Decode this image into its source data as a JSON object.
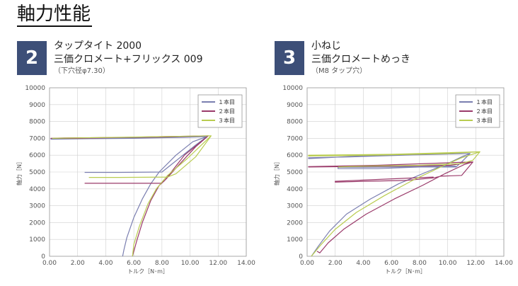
{
  "page_title": "軸力性能",
  "colors": {
    "run1": "#7a7eb0",
    "run2": "#9a3a6a",
    "run3": "#b9cc50",
    "badge": "#3d4f78"
  },
  "panels": [
    {
      "number": "2",
      "line1": "タップタイト 2000",
      "line2": "三価クロメート+フリックス 009",
      "sub": "（下穴径φ7.30）"
    },
    {
      "number": "3",
      "line1": "小ねじ",
      "line2": "三価クロメートめっき",
      "sub": "（M8 タップ穴）"
    }
  ],
  "chart_data": [
    {
      "type": "line",
      "xlabel": "トルク［N･m］",
      "ylabel": "軸力［N］",
      "xlim": [
        0,
        14
      ],
      "ylim": [
        0,
        10000
      ],
      "xticks": [
        "0.00",
        "2.00",
        "4.00",
        "6.00",
        "8.00",
        "10.00",
        "12.00",
        "14.00"
      ],
      "yticks": [
        "0",
        "1000",
        "2000",
        "3000",
        "4000",
        "5000",
        "6000",
        "7000",
        "8000",
        "9000",
        "10000"
      ],
      "legend_position": "top-right",
      "series": [
        {
          "name": "１本目",
          "points": [
            [
              5.2,
              0
            ],
            [
              5.3,
              400
            ],
            [
              5.5,
              1100
            ],
            [
              6.0,
              2300
            ],
            [
              6.6,
              3400
            ],
            [
              7.2,
              4300
            ],
            [
              7.8,
              5000
            ],
            [
              9.0,
              6000
            ],
            [
              10.2,
              6800
            ],
            [
              11.2,
              7100
            ],
            [
              9.0,
              7050
            ],
            [
              6.0,
              7000
            ],
            [
              3.0,
              6980
            ],
            [
              0.1,
              6950
            ],
            [
              0.1,
              6980
            ],
            [
              3.0,
              7000
            ],
            [
              6.0,
              7020
            ],
            [
              8.0,
              7050
            ],
            [
              11.2,
              7100
            ],
            [
              10.4,
              6600
            ],
            [
              8.6,
              5400
            ],
            [
              8.0,
              5000
            ],
            [
              5.0,
              4980
            ],
            [
              2.5,
              4980
            ]
          ]
        },
        {
          "name": "２本目",
          "points": [
            [
              5.9,
              0
            ],
            [
              6.2,
              900
            ],
            [
              6.6,
              2000
            ],
            [
              7.2,
              3300
            ],
            [
              7.8,
              4200
            ],
            [
              8.2,
              4500
            ],
            [
              9.4,
              5600
            ],
            [
              10.4,
              6500
            ],
            [
              11.3,
              7150
            ],
            [
              8.0,
              7100
            ],
            [
              5.0,
              7050
            ],
            [
              2.0,
              7000
            ],
            [
              0.1,
              7000
            ],
            [
              1.0,
              7020
            ],
            [
              4.0,
              7040
            ],
            [
              8.0,
              7080
            ],
            [
              11.3,
              7150
            ],
            [
              9.6,
              6000
            ],
            [
              8.2,
              4500
            ],
            [
              7.9,
              4330
            ],
            [
              5.0,
              4330
            ],
            [
              2.5,
              4330
            ]
          ]
        },
        {
          "name": "３本目",
          "points": [
            [
              5.9,
              0
            ],
            [
              6.0,
              700
            ],
            [
              6.4,
              1800
            ],
            [
              7.0,
              3100
            ],
            [
              7.6,
              4000
            ],
            [
              8.4,
              4800
            ],
            [
              9.8,
              5800
            ],
            [
              10.8,
              6600
            ],
            [
              11.5,
              7150
            ],
            [
              8.0,
              7100
            ],
            [
              4.0,
              7050
            ],
            [
              0.2,
              7000
            ],
            [
              2.0,
              7030
            ],
            [
              6.0,
              7070
            ],
            [
              11.5,
              7150
            ],
            [
              10.4,
              5900
            ],
            [
              9.0,
              4900
            ],
            [
              8.4,
              4700
            ],
            [
              5.0,
              4680
            ],
            [
              2.8,
              4680
            ]
          ]
        }
      ]
    },
    {
      "type": "line",
      "xlabel": "トルク［N･m］",
      "ylabel": "軸力［N］",
      "xlim": [
        0,
        14
      ],
      "ylim": [
        0,
        10000
      ],
      "xticks": [
        "0.00",
        "2.00",
        "4.00",
        "6.00",
        "8.00",
        "10.00",
        "12.00",
        "14.00"
      ],
      "yticks": [
        "0",
        "1000",
        "2000",
        "3000",
        "4000",
        "5000",
        "6000",
        "7000",
        "8000",
        "9000",
        "10000"
      ],
      "legend_position": "top-right",
      "series": [
        {
          "name": "１本目",
          "points": [
            [
              0.3,
              0
            ],
            [
              0.8,
              600
            ],
            [
              1.6,
              1500
            ],
            [
              2.8,
              2500
            ],
            [
              4.5,
              3400
            ],
            [
              6.5,
              4300
            ],
            [
              8.5,
              5000
            ],
            [
              10.0,
              5500
            ],
            [
              11.0,
              5900
            ],
            [
              11.6,
              6100
            ],
            [
              9.0,
              6050
            ],
            [
              5.0,
              6000
            ],
            [
              0.1,
              5800
            ],
            [
              0.1,
              5850
            ],
            [
              3.0,
              5900
            ],
            [
              7.0,
              6000
            ],
            [
              11.6,
              6100
            ],
            [
              11.0,
              5600
            ],
            [
              10.6,
              5300
            ],
            [
              8.0,
              5300
            ],
            [
              5.0,
              5200
            ],
            [
              2.2,
              5200
            ],
            [
              2.2,
              5280
            ],
            [
              6.0,
              5300
            ],
            [
              10.6,
              5350
            ]
          ]
        },
        {
          "name": "２本目",
          "points": [
            [
              0.7,
              300
            ],
            [
              0.9,
              200
            ],
            [
              1.5,
              800
            ],
            [
              2.6,
              1600
            ],
            [
              4.2,
              2500
            ],
            [
              6.2,
              3400
            ],
            [
              8.2,
              4200
            ],
            [
              9.8,
              4900
            ],
            [
              11.2,
              5450
            ],
            [
              11.8,
              5600
            ],
            [
              10.2,
              5400
            ],
            [
              6.0,
              5350
            ],
            [
              0.1,
              5300
            ],
            [
              0.1,
              5320
            ],
            [
              5.0,
              5400
            ],
            [
              11.8,
              5600
            ],
            [
              11.0,
              4800
            ],
            [
              9.5,
              4750
            ],
            [
              9.0,
              4650
            ],
            [
              7.0,
              4500
            ],
            [
              4.0,
              4450
            ],
            [
              2.0,
              4400
            ],
            [
              2.0,
              4450
            ],
            [
              9.0,
              4700
            ]
          ]
        },
        {
          "name": "３本目",
          "points": [
            [
              0.3,
              0
            ],
            [
              1.0,
              700
            ],
            [
              2.0,
              1600
            ],
            [
              3.5,
              2600
            ],
            [
              5.5,
              3600
            ],
            [
              7.5,
              4500
            ],
            [
              9.5,
              5300
            ],
            [
              11.0,
              5850
            ],
            [
              12.3,
              6200
            ],
            [
              10.0,
              6100
            ],
            [
              5.0,
              6000
            ],
            [
              0.1,
              5950
            ],
            [
              0.1,
              6000
            ],
            [
              6.0,
              6050
            ],
            [
              12.3,
              6200
            ],
            [
              11.8,
              5700
            ],
            [
              11.0,
              5500
            ],
            [
              8.0,
              5400
            ],
            [
              4.0,
              5350
            ],
            [
              2.2,
              5300
            ]
          ]
        }
      ]
    }
  ]
}
